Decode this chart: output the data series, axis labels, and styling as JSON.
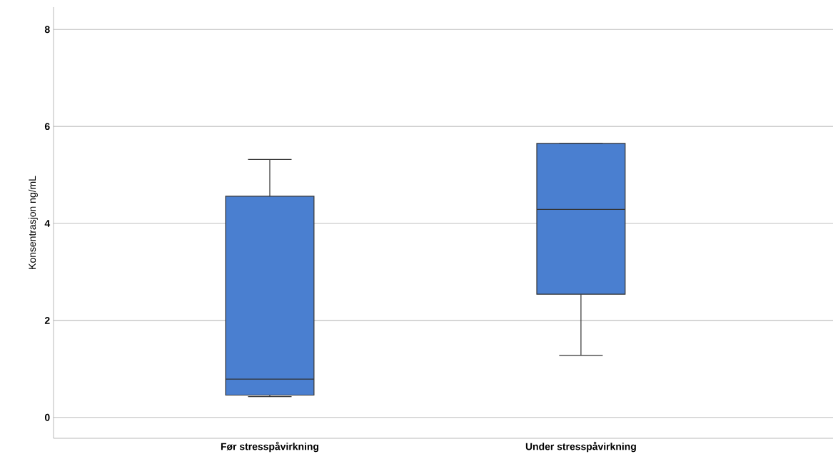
{
  "chart_data": {
    "type": "box",
    "ylabel": "Konsentrasjon ng/mL",
    "categories": [
      "Før stresspåvirkning",
      "Under stresspåvirkning"
    ],
    "boxes": [
      {
        "low": 0.43,
        "q1": 0.46,
        "median": 0.79,
        "q3": 4.56,
        "high": 5.32
      },
      {
        "low": 1.28,
        "q1": 2.54,
        "median": 4.29,
        "q3": 5.65,
        "high": 5.65
      }
    ],
    "color": "#4a7fd0",
    "ylim": [
      -0.43,
      8.46
    ],
    "yticks": [
      0,
      2,
      4,
      6,
      8
    ],
    "grid": "y"
  }
}
